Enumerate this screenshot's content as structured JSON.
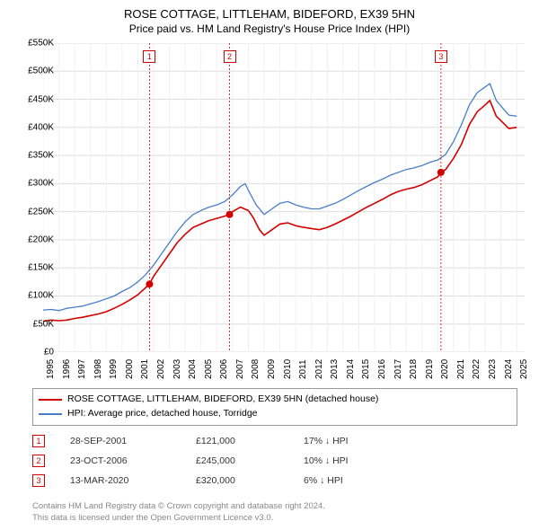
{
  "title": "ROSE COTTAGE, LITTLEHAM, BIDEFORD, EX39 5HN",
  "subtitle": "Price paid vs. HM Land Registry's House Price Index (HPI)",
  "chart": {
    "type": "line",
    "background_color": "#ffffff",
    "grid_color": "#dddddd",
    "grid_light_color": "#f0f0f0",
    "ylim": [
      0,
      550000
    ],
    "ytick_step": 50000,
    "yticks": [
      "£0",
      "£50K",
      "£100K",
      "£150K",
      "£200K",
      "£250K",
      "£300K",
      "£350K",
      "£400K",
      "£450K",
      "£500K",
      "£550K"
    ],
    "xlim": [
      1995,
      2025.5
    ],
    "xticks": [
      1995,
      1996,
      1997,
      1998,
      1999,
      2000,
      2001,
      2002,
      2003,
      2004,
      2005,
      2006,
      2007,
      2008,
      2009,
      2010,
      2011,
      2012,
      2013,
      2014,
      2015,
      2016,
      2017,
      2018,
      2019,
      2020,
      2021,
      2022,
      2023,
      2024,
      2025
    ],
    "series": [
      {
        "name": "ROSE COTTAGE, LITTLEHAM, BIDEFORD, EX39 5HN (detached house)",
        "color": "#d40000",
        "line_width": 1.6,
        "data": [
          [
            1995,
            55000
          ],
          [
            1995.5,
            57000
          ],
          [
            1996,
            56000
          ],
          [
            1996.5,
            57000
          ],
          [
            1997,
            60000
          ],
          [
            1997.5,
            62000
          ],
          [
            1998,
            65000
          ],
          [
            1998.5,
            68000
          ],
          [
            1999,
            72000
          ],
          [
            1999.5,
            78000
          ],
          [
            2000,
            85000
          ],
          [
            2000.5,
            93000
          ],
          [
            2001,
            102000
          ],
          [
            2001.5,
            115000
          ],
          [
            2001.74,
            121000
          ],
          [
            2002,
            135000
          ],
          [
            2002.5,
            155000
          ],
          [
            2003,
            175000
          ],
          [
            2003.5,
            195000
          ],
          [
            2004,
            210000
          ],
          [
            2004.5,
            222000
          ],
          [
            2005,
            228000
          ],
          [
            2005.5,
            234000
          ],
          [
            2006,
            238000
          ],
          [
            2006.5,
            242000
          ],
          [
            2006.81,
            245000
          ],
          [
            2007,
            250000
          ],
          [
            2007.5,
            258000
          ],
          [
            2008,
            252000
          ],
          [
            2008.3,
            240000
          ],
          [
            2008.7,
            218000
          ],
          [
            2009,
            208000
          ],
          [
            2009.5,
            218000
          ],
          [
            2010,
            228000
          ],
          [
            2010.5,
            230000
          ],
          [
            2011,
            225000
          ],
          [
            2011.5,
            222000
          ],
          [
            2012,
            220000
          ],
          [
            2012.5,
            218000
          ],
          [
            2013,
            222000
          ],
          [
            2013.5,
            228000
          ],
          [
            2014,
            235000
          ],
          [
            2014.5,
            242000
          ],
          [
            2015,
            250000
          ],
          [
            2015.5,
            258000
          ],
          [
            2016,
            265000
          ],
          [
            2016.5,
            272000
          ],
          [
            2017,
            280000
          ],
          [
            2017.5,
            286000
          ],
          [
            2018,
            290000
          ],
          [
            2018.5,
            293000
          ],
          [
            2019,
            298000
          ],
          [
            2019.5,
            305000
          ],
          [
            2020,
            312000
          ],
          [
            2020.2,
            320000
          ],
          [
            2020.5,
            325000
          ],
          [
            2021,
            345000
          ],
          [
            2021.5,
            370000
          ],
          [
            2022,
            405000
          ],
          [
            2022.5,
            428000
          ],
          [
            2023,
            440000
          ],
          [
            2023.3,
            448000
          ],
          [
            2023.7,
            420000
          ],
          [
            2024,
            412000
          ],
          [
            2024.5,
            398000
          ],
          [
            2025,
            400000
          ]
        ]
      },
      {
        "name": "HPI: Average price, detached house, Torridge",
        "color": "#4a7fc4",
        "line_width": 1.3,
        "data": [
          [
            1995,
            75000
          ],
          [
            1995.5,
            76000
          ],
          [
            1996,
            74000
          ],
          [
            1996.5,
            78000
          ],
          [
            1997,
            80000
          ],
          [
            1997.5,
            82000
          ],
          [
            1998,
            86000
          ],
          [
            1998.5,
            90000
          ],
          [
            1999,
            95000
          ],
          [
            1999.5,
            100000
          ],
          [
            2000,
            108000
          ],
          [
            2000.5,
            115000
          ],
          [
            2001,
            125000
          ],
          [
            2001.5,
            138000
          ],
          [
            2002,
            155000
          ],
          [
            2002.5,
            175000
          ],
          [
            2003,
            195000
          ],
          [
            2003.5,
            215000
          ],
          [
            2004,
            232000
          ],
          [
            2004.5,
            245000
          ],
          [
            2005,
            252000
          ],
          [
            2005.5,
            258000
          ],
          [
            2006,
            262000
          ],
          [
            2006.5,
            268000
          ],
          [
            2007,
            280000
          ],
          [
            2007.5,
            295000
          ],
          [
            2007.8,
            300000
          ],
          [
            2008,
            288000
          ],
          [
            2008.5,
            262000
          ],
          [
            2009,
            245000
          ],
          [
            2009.5,
            255000
          ],
          [
            2010,
            265000
          ],
          [
            2010.5,
            268000
          ],
          [
            2011,
            262000
          ],
          [
            2011.5,
            258000
          ],
          [
            2012,
            255000
          ],
          [
            2012.5,
            255000
          ],
          [
            2013,
            260000
          ],
          [
            2013.5,
            265000
          ],
          [
            2014,
            272000
          ],
          [
            2014.5,
            280000
          ],
          [
            2015,
            288000
          ],
          [
            2015.5,
            295000
          ],
          [
            2016,
            302000
          ],
          [
            2016.5,
            308000
          ],
          [
            2017,
            315000
          ],
          [
            2017.5,
            320000
          ],
          [
            2018,
            325000
          ],
          [
            2018.5,
            328000
          ],
          [
            2019,
            332000
          ],
          [
            2019.5,
            338000
          ],
          [
            2020,
            342000
          ],
          [
            2020.5,
            352000
          ],
          [
            2021,
            375000
          ],
          [
            2021.5,
            405000
          ],
          [
            2022,
            440000
          ],
          [
            2022.5,
            462000
          ],
          [
            2023,
            472000
          ],
          [
            2023.3,
            478000
          ],
          [
            2023.7,
            448000
          ],
          [
            2024,
            438000
          ],
          [
            2024.5,
            422000
          ],
          [
            2025,
            420000
          ]
        ]
      }
    ],
    "sale_markers": [
      {
        "n": "1",
        "x": 2001.74,
        "y": 121000,
        "line_color": "#d40000",
        "dot_color": "#d40000"
      },
      {
        "n": "2",
        "x": 2006.81,
        "y": 245000,
        "line_color": "#d40000",
        "dot_color": "#d40000"
      },
      {
        "n": "3",
        "x": 2020.2,
        "y": 320000,
        "line_color": "#d40000",
        "dot_color": "#d40000"
      }
    ]
  },
  "legend": {
    "items": [
      {
        "label": "ROSE COTTAGE, LITTLEHAM, BIDEFORD, EX39 5HN (detached house)",
        "color": "#d40000"
      },
      {
        "label": "HPI: Average price, detached house, Torridge",
        "color": "#4a7fc4"
      }
    ]
  },
  "annotations": [
    {
      "n": "1",
      "date": "28-SEP-2001",
      "price": "£121,000",
      "pct": "17% ↓ HPI",
      "color": "#d40000"
    },
    {
      "n": "2",
      "date": "23-OCT-2006",
      "price": "£245,000",
      "pct": "10% ↓ HPI",
      "color": "#d40000"
    },
    {
      "n": "3",
      "date": "13-MAR-2020",
      "price": "£320,000",
      "pct": "6% ↓ HPI",
      "color": "#d40000"
    }
  ],
  "footer": {
    "line1": "Contains HM Land Registry data © Crown copyright and database right 2024.",
    "line2": "This data is licensed under the Open Government Licence v3.0."
  }
}
